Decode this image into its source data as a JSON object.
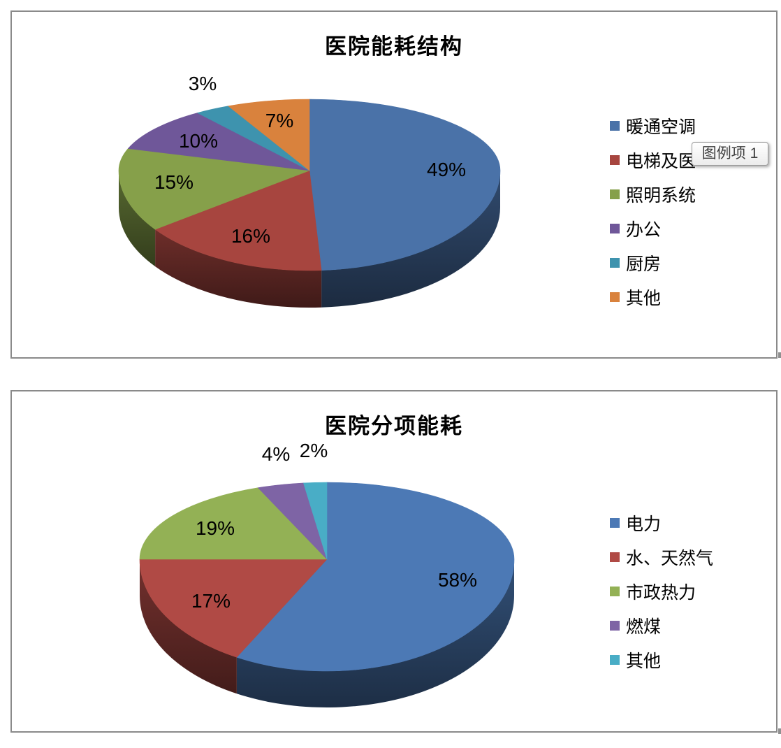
{
  "tooltip": {
    "text": "图例项 1"
  },
  "chart_data": [
    {
      "type": "pie",
      "style": "3d",
      "title": "医院能耗结构",
      "labels": [
        "暖通空调",
        "电梯及医",
        "照明系统",
        "办公",
        "厨房",
        "其他"
      ],
      "values": [
        49,
        16,
        15,
        10,
        3,
        7
      ],
      "data_labels": [
        "49%",
        "16%",
        "15%",
        "10%",
        "3%",
        "7%"
      ],
      "colors": [
        "#4A72A8",
        "#A7453F",
        "#86A04A",
        "#6F5799",
        "#3E93AE",
        "#D9823D"
      ],
      "legend_position": "right",
      "start_angle_deg": 0,
      "label_threshold_outside_pct": 5
    },
    {
      "type": "pie",
      "style": "3d",
      "title": "医院分项能耗",
      "labels": [
        "电力",
        "水、天然气",
        "市政热力",
        "燃煤",
        "其他"
      ],
      "values": [
        58,
        17,
        19,
        4,
        2
      ],
      "data_labels": [
        "58%",
        "17%",
        "19%",
        "4%",
        "2%"
      ],
      "colors": [
        "#4C79B5",
        "#B04A45",
        "#93B155",
        "#7E64A5",
        "#49ADC6"
      ],
      "legend_position": "right",
      "start_angle_deg": 0,
      "label_threshold_outside_pct": 5
    }
  ]
}
